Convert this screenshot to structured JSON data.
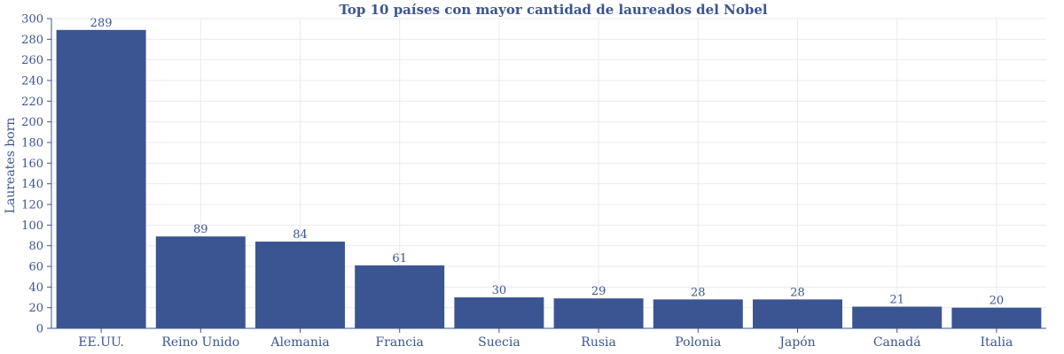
{
  "chart_data": {
    "type": "bar",
    "title": "Top 10 países con mayor cantidad de laureados del Nobel",
    "xlabel": "",
    "ylabel": "Laureates born",
    "categories": [
      "EE.UU.",
      "Reino Unido",
      "Alemania",
      "Francia",
      "Suecia",
      "Rusia",
      "Polonia",
      "Japón",
      "Canadá",
      "Italia"
    ],
    "values": [
      289,
      89,
      84,
      61,
      30,
      29,
      28,
      28,
      21,
      20
    ],
    "data_labels": [
      "289",
      "89",
      "84",
      "61",
      "30",
      "29",
      "28",
      "28",
      "21",
      "20"
    ],
    "ylim": [
      0,
      300
    ],
    "yticks": [
      0,
      20,
      40,
      60,
      80,
      100,
      120,
      140,
      160,
      180,
      200,
      220,
      240,
      260,
      280,
      300
    ],
    "grid": true,
    "legend": "none",
    "colors": {
      "bar": "#3b5592",
      "text": "#3b5590",
      "grid": "#e8ebf0",
      "axis": "#3b5590"
    }
  }
}
